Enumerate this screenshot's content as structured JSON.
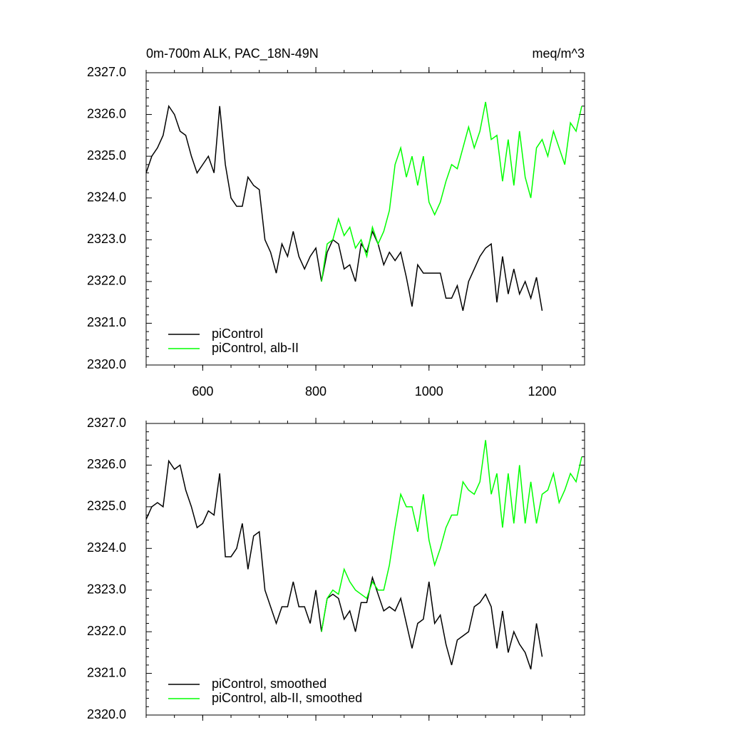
{
  "chart_data": [
    {
      "type": "line",
      "title": "0m-700m ALK, PAC_18N-49N",
      "units": "meq/m^3",
      "xlim": [
        500,
        1275
      ],
      "xticks": [
        600,
        800,
        1000,
        1200
      ],
      "xtick_labels": true,
      "ylim": [
        2320,
        2327
      ],
      "yticks": [
        {
          "value": 2320,
          "label": "2320.0"
        },
        {
          "value": 2321,
          "label": "2321.0"
        },
        {
          "value": 2322,
          "label": "2322.0"
        },
        {
          "value": 2323,
          "label": "2323.0"
        },
        {
          "value": 2324,
          "label": "2324.0"
        },
        {
          "value": 2325,
          "label": "2325.0"
        },
        {
          "value": 2326,
          "label": "2326.0"
        },
        {
          "value": 2327,
          "label": "2327.0"
        }
      ],
      "legend": "lower left",
      "series": [
        {
          "name": "piControl",
          "color": "#000000",
          "x": [
            500,
            510,
            520,
            530,
            540,
            550,
            560,
            570,
            580,
            590,
            600,
            610,
            620,
            630,
            640,
            650,
            660,
            670,
            680,
            690,
            700,
            710,
            720,
            730,
            740,
            750,
            760,
            770,
            780,
            790,
            800,
            810,
            820,
            830,
            840,
            850,
            860,
            870,
            880,
            890,
            900,
            910,
            920,
            930,
            940,
            950,
            960,
            970,
            980,
            990,
            1000,
            1010,
            1020,
            1030,
            1040,
            1050,
            1060,
            1070,
            1080,
            1090,
            1100,
            1110,
            1120,
            1130,
            1140,
            1150,
            1160,
            1170,
            1180,
            1190,
            1200
          ],
          "values": [
            2324.6,
            2325.0,
            2325.2,
            2325.5,
            2326.2,
            2326.0,
            2325.6,
            2325.5,
            2325.0,
            2324.6,
            2324.8,
            2325.0,
            2324.6,
            2326.2,
            2324.8,
            2324.0,
            2323.8,
            2323.8,
            2324.5,
            2324.3,
            2324.2,
            2323.0,
            2322.7,
            2322.2,
            2322.9,
            2322.6,
            2323.2,
            2322.6,
            2322.3,
            2322.6,
            2322.8,
            2322.0,
            2322.7,
            2323.0,
            2322.9,
            2322.3,
            2322.4,
            2322.0,
            2322.9,
            2322.7,
            2323.2,
            2322.9,
            2322.4,
            2322.7,
            2322.5,
            2322.7,
            2322.1,
            2321.4,
            2322.4,
            2322.2,
            2322.2,
            2322.2,
            2322.2,
            2321.6,
            2321.6,
            2321.9,
            2321.3,
            2322.0,
            2322.3,
            2322.6,
            2322.8,
            2322.9,
            2321.5,
            2322.6,
            2321.7,
            2322.3,
            2321.7,
            2322.0,
            2321.6,
            2322.1,
            2321.3
          ]
        },
        {
          "name": "piControl, alb-II",
          "color": "#00ff00",
          "x": [
            810,
            820,
            830,
            840,
            850,
            860,
            870,
            880,
            890,
            900,
            910,
            920,
            930,
            940,
            950,
            960,
            970,
            980,
            990,
            1000,
            1010,
            1020,
            1030,
            1040,
            1050,
            1060,
            1070,
            1080,
            1090,
            1100,
            1110,
            1120,
            1130,
            1140,
            1150,
            1160,
            1170,
            1180,
            1190,
            1200,
            1210,
            1220,
            1230,
            1240,
            1250,
            1260,
            1270
          ],
          "values": [
            2322.0,
            2322.9,
            2323.0,
            2323.5,
            2323.1,
            2323.3,
            2322.8,
            2323.0,
            2322.6,
            2323.3,
            2322.9,
            2323.2,
            2323.7,
            2324.8,
            2325.2,
            2324.5,
            2325.0,
            2324.3,
            2325.0,
            2323.9,
            2323.6,
            2323.9,
            2324.4,
            2324.8,
            2324.7,
            2325.2,
            2325.7,
            2325.2,
            2325.6,
            2326.3,
            2325.4,
            2325.5,
            2324.4,
            2325.4,
            2324.3,
            2325.6,
            2324.5,
            2324.0,
            2325.2,
            2325.4,
            2325.0,
            2325.6,
            2325.2,
            2324.8,
            2325.8,
            2325.6,
            2326.2
          ]
        }
      ]
    },
    {
      "type": "line",
      "xlim": [
        500,
        1275
      ],
      "xticks": [
        600,
        800,
        1000,
        1200
      ],
      "xtick_labels": false,
      "ylim": [
        2320,
        2327
      ],
      "yticks": [
        {
          "value": 2320,
          "label": "2320.0"
        },
        {
          "value": 2321,
          "label": "2321.0"
        },
        {
          "value": 2322,
          "label": "2322.0"
        },
        {
          "value": 2323,
          "label": "2323.0"
        },
        {
          "value": 2324,
          "label": "2324.0"
        },
        {
          "value": 2325,
          "label": "2325.0"
        },
        {
          "value": 2326,
          "label": "2326.0"
        },
        {
          "value": 2327,
          "label": "2327.0"
        }
      ],
      "legend": "lower left",
      "series": [
        {
          "name": "piControl, smoothed",
          "color": "#000000",
          "x": [
            500,
            510,
            520,
            530,
            540,
            550,
            560,
            570,
            580,
            590,
            600,
            610,
            620,
            630,
            640,
            650,
            660,
            670,
            680,
            690,
            700,
            710,
            720,
            730,
            740,
            750,
            760,
            770,
            780,
            790,
            800,
            810,
            820,
            830,
            840,
            850,
            860,
            870,
            880,
            890,
            900,
            910,
            920,
            930,
            940,
            950,
            960,
            970,
            980,
            990,
            1000,
            1010,
            1020,
            1030,
            1040,
            1050,
            1060,
            1070,
            1080,
            1090,
            1100,
            1110,
            1120,
            1130,
            1140,
            1150,
            1160,
            1170,
            1180,
            1190,
            1200
          ],
          "values": [
            2324.7,
            2325.0,
            2325.1,
            2325.0,
            2326.1,
            2325.9,
            2326.0,
            2325.4,
            2325.0,
            2324.5,
            2324.6,
            2324.9,
            2324.8,
            2325.8,
            2323.8,
            2323.8,
            2324.0,
            2324.6,
            2323.5,
            2324.3,
            2324.4,
            2323.0,
            2322.6,
            2322.2,
            2322.6,
            2322.6,
            2323.2,
            2322.6,
            2322.6,
            2322.2,
            2323.0,
            2322.0,
            2322.8,
            2322.9,
            2322.8,
            2322.3,
            2322.5,
            2322.0,
            2322.7,
            2322.7,
            2323.3,
            2322.9,
            2322.5,
            2322.6,
            2322.5,
            2322.8,
            2322.2,
            2321.6,
            2322.2,
            2322.3,
            2323.2,
            2322.2,
            2322.4,
            2321.7,
            2321.2,
            2321.8,
            2321.9,
            2322.0,
            2322.6,
            2322.7,
            2322.9,
            2322.6,
            2321.6,
            2322.5,
            2321.5,
            2322.0,
            2321.7,
            2321.5,
            2321.1,
            2322.2,
            2321.4
          ]
        },
        {
          "name": "piControl, alb-II, smoothed",
          "color": "#00ff00",
          "x": [
            810,
            820,
            830,
            840,
            850,
            860,
            870,
            880,
            890,
            900,
            910,
            920,
            930,
            940,
            950,
            960,
            970,
            980,
            990,
            1000,
            1010,
            1020,
            1030,
            1040,
            1050,
            1060,
            1070,
            1080,
            1090,
            1100,
            1110,
            1120,
            1130,
            1140,
            1150,
            1160,
            1170,
            1180,
            1190,
            1200,
            1210,
            1220,
            1230,
            1240,
            1250,
            1260,
            1270
          ],
          "values": [
            2322.0,
            2322.8,
            2323.0,
            2322.9,
            2323.5,
            2323.2,
            2323.0,
            2322.9,
            2322.8,
            2323.2,
            2323.0,
            2323.0,
            2323.6,
            2324.5,
            2325.3,
            2325.0,
            2325.0,
            2324.4,
            2325.3,
            2324.2,
            2323.6,
            2324.0,
            2324.5,
            2324.8,
            2324.8,
            2325.6,
            2325.4,
            2325.3,
            2325.6,
            2326.6,
            2325.3,
            2325.8,
            2324.5,
            2325.8,
            2324.6,
            2326.0,
            2324.6,
            2325.6,
            2324.6,
            2325.3,
            2325.4,
            2325.8,
            2325.1,
            2325.4,
            2325.8,
            2325.6,
            2326.2
          ]
        }
      ]
    }
  ]
}
